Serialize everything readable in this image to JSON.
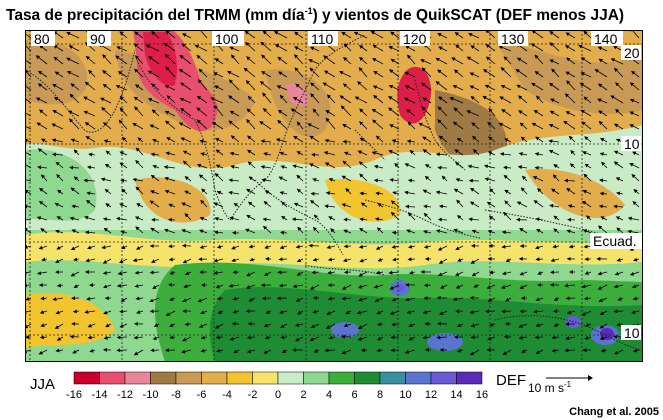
{
  "title": {
    "before_sup1": "Tasa de precipitación del TRMM (mm día",
    "sup1": "-1",
    "after_sup1": ") y vientos de QuikSCAT (DEF menos JJA)"
  },
  "map": {
    "lon_labels": [
      "80",
      "90",
      "100",
      "110",
      "120",
      "130",
      "140"
    ],
    "lat_labels": [
      "20",
      "10",
      "Ecuad.",
      "10"
    ],
    "colors": {
      "c_m16": "#c8002a",
      "c_m14": "#dc1e48",
      "c_m12": "#e84f6e",
      "c_m10": "#e8879a",
      "c_m8": "#a07a45",
      "c_m6": "#c89a55",
      "c_m4": "#e2ad4a",
      "c_m2": "#f2c42e",
      "c_0": "#f6e46a",
      "c_2": "#c9ecc6",
      "c_4": "#8fd88f",
      "c_6": "#3cae3c",
      "c_8": "#1e8c32",
      "c_10": "#5a74d0",
      "c_12": "#6a5ad6",
      "c_14": "#7b45c8",
      "c_16": "#5a2ab8"
    }
  },
  "legend": {
    "left_label": "JJA",
    "right_label": "DEF",
    "ticks": [
      "-16",
      "-14",
      "-12",
      "-10",
      "-8",
      "-6",
      "-4",
      "-2",
      "0",
      "2",
      "4",
      "6",
      "8",
      "10",
      "12",
      "14",
      "16"
    ],
    "swatch_colors": [
      "#c8002a",
      "#e84f6e",
      "#e8879a",
      "#a07a45",
      "#c89a55",
      "#e2ad4a",
      "#f2c42e",
      "#f6e46a",
      "#c9ecc6",
      "#8fd88f",
      "#3cae3c",
      "#1e8c32",
      "#3a8fa0",
      "#5a74d0",
      "#6a5ad6",
      "#5a2ab8"
    ],
    "arrow_label_main": "10 m s",
    "arrow_label_sup": "-1"
  },
  "credit": "Chang et al. 2005"
}
